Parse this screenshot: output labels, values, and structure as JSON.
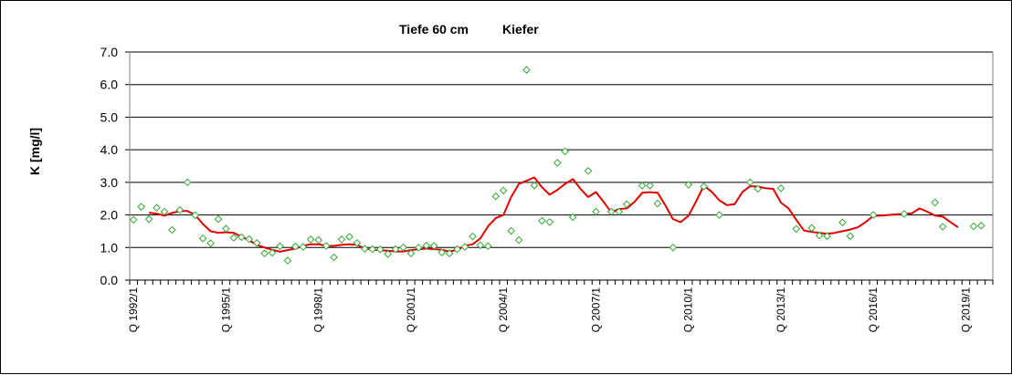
{
  "chart_data": {
    "type": "scatter",
    "title_parts": [
      "Tiefe  60 cm",
      "Kiefer"
    ],
    "ylabel": "K [mg/l]",
    "xlabel": "",
    "ylim": [
      0,
      7
    ],
    "yticks": [
      "0.0",
      "1.0",
      "2.0",
      "3.0",
      "4.0",
      "5.0",
      "6.0",
      "7.0"
    ],
    "x_tick_labels": [
      "Q 1992/1",
      "Q 1995/1",
      "Q 1998/1",
      "Q 2001/1",
      "Q 2004/1",
      "Q 2007/1",
      "Q 2010/1",
      "Q 2013/1",
      "Q 2016/1",
      "Q 2019/1"
    ],
    "x_range": [
      "Q 1992/1",
      "Q 2019/4"
    ],
    "grid": "horizontal",
    "legend": "none",
    "colors": {
      "points": "#33a833",
      "line": "#e00000",
      "grid": "#000000"
    },
    "series": [
      {
        "kind": "points",
        "marker": "diamond-open",
        "points": [
          [
            "1992-Q1",
            1.85
          ],
          [
            "1992-Q2",
            2.25
          ],
          [
            "1992-Q3",
            1.87
          ],
          [
            "1992-Q4",
            2.22
          ],
          [
            "1993-Q1",
            2.1
          ],
          [
            "1993-Q2",
            1.54
          ],
          [
            "1993-Q3",
            2.15
          ],
          [
            "1993-Q4",
            3.0
          ],
          [
            "1994-Q1",
            1.99
          ],
          [
            "1994-Q2",
            1.28
          ],
          [
            "1994-Q3",
            1.13
          ],
          [
            "1994-Q4",
            1.87
          ],
          [
            "1995-Q1",
            1.58
          ],
          [
            "1995-Q2",
            1.3
          ],
          [
            "1995-Q3",
            1.32
          ],
          [
            "1995-Q4",
            1.26
          ],
          [
            "1996-Q1",
            1.14
          ],
          [
            "1996-Q2",
            0.82
          ],
          [
            "1996-Q3",
            0.84
          ],
          [
            "1996-Q4",
            1.04
          ],
          [
            "1997-Q1",
            0.6
          ],
          [
            "1997-Q2",
            1.03
          ],
          [
            "1997-Q3",
            1.02
          ],
          [
            "1997-Q4",
            1.25
          ],
          [
            "1998-Q1",
            1.23
          ],
          [
            "1998-Q2",
            1.05
          ],
          [
            "1998-Q3",
            0.7
          ],
          [
            "1998-Q4",
            1.25
          ],
          [
            "1999-Q1",
            1.33
          ],
          [
            "1999-Q2",
            1.14
          ],
          [
            "1999-Q3",
            0.96
          ],
          [
            "1999-Q4",
            0.95
          ],
          [
            "2000-Q1",
            0.94
          ],
          [
            "2000-Q2",
            0.8
          ],
          [
            "2000-Q3",
            0.95
          ],
          [
            "2000-Q4",
            1.0
          ],
          [
            "2001-Q1",
            0.82
          ],
          [
            "2001-Q2",
            1.0
          ],
          [
            "2001-Q3",
            1.06
          ],
          [
            "2001-Q4",
            1.05
          ],
          [
            "2002-Q1",
            0.85
          ],
          [
            "2002-Q2",
            0.82
          ],
          [
            "2002-Q3",
            0.95
          ],
          [
            "2002-Q4",
            1.02
          ],
          [
            "2003-Q1",
            1.34
          ],
          [
            "2003-Q2",
            1.07
          ],
          [
            "2003-Q3",
            1.04
          ],
          [
            "2003-Q4",
            2.57
          ],
          [
            "2004-Q1",
            2.75
          ],
          [
            "2004-Q2",
            1.51
          ],
          [
            "2004-Q3",
            1.23
          ],
          [
            "2004-Q4",
            6.45
          ],
          [
            "2005-Q1",
            2.9
          ],
          [
            "2005-Q2",
            1.82
          ],
          [
            "2005-Q3",
            1.78
          ],
          [
            "2005-Q4",
            3.6
          ],
          [
            "2006-Q1",
            3.95
          ],
          [
            "2006-Q2",
            1.93
          ],
          [
            "2006-Q4",
            3.35
          ],
          [
            "2007-Q1",
            2.1
          ],
          [
            "2007-Q3",
            2.1
          ],
          [
            "2007-Q4",
            2.1
          ],
          [
            "2008-Q1",
            2.33
          ],
          [
            "2008-Q3",
            2.9
          ],
          [
            "2008-Q4",
            2.9
          ],
          [
            "2009-Q1",
            2.35
          ],
          [
            "2009-Q3",
            1.0
          ],
          [
            "2010-Q1",
            2.93
          ],
          [
            "2010-Q3",
            2.87
          ],
          [
            "2011-Q1",
            2.0
          ],
          [
            "2012-Q1",
            3.0
          ],
          [
            "2012-Q2",
            2.8
          ],
          [
            "2013-Q1",
            2.82
          ],
          [
            "2013-Q3",
            1.57
          ],
          [
            "2014-Q1",
            1.6
          ],
          [
            "2014-Q2",
            1.37
          ],
          [
            "2014-Q3",
            1.35
          ],
          [
            "2015-Q1",
            1.77
          ],
          [
            "2015-Q2",
            1.35
          ],
          [
            "2016-Q1",
            2.0
          ],
          [
            "2017-Q1",
            2.03
          ],
          [
            "2018-Q1",
            2.38
          ],
          [
            "2018-Q2",
            1.64
          ],
          [
            "2019-Q2",
            1.65
          ],
          [
            "2019-Q3",
            1.67
          ]
        ]
      },
      {
        "kind": "line",
        "points": [
          [
            "1992-Q3",
            2.07
          ],
          [
            "1992-Q4",
            2.04
          ],
          [
            "1993-Q1",
            1.98
          ],
          [
            "1993-Q2",
            2.06
          ],
          [
            "1993-Q3",
            2.12
          ],
          [
            "1993-Q4",
            2.12
          ],
          [
            "1994-Q1",
            2.0
          ],
          [
            "1994-Q2",
            1.72
          ],
          [
            "1994-Q3",
            1.5
          ],
          [
            "1994-Q4",
            1.45
          ],
          [
            "1995-Q1",
            1.47
          ],
          [
            "1995-Q2",
            1.45
          ],
          [
            "1995-Q3",
            1.33
          ],
          [
            "1995-Q4",
            1.22
          ],
          [
            "1996-Q1",
            1.08
          ],
          [
            "1996-Q2",
            1.0
          ],
          [
            "1996-Q3",
            0.93
          ],
          [
            "1996-Q4",
            0.87
          ],
          [
            "1997-Q1",
            0.92
          ],
          [
            "1997-Q2",
            0.97
          ],
          [
            "1997-Q3",
            1.05
          ],
          [
            "1997-Q4",
            1.1
          ],
          [
            "1998-Q1",
            1.1
          ],
          [
            "1998-Q2",
            1.05
          ],
          [
            "1998-Q3",
            1.05
          ],
          [
            "1998-Q4",
            1.08
          ],
          [
            "1999-Q1",
            1.1
          ],
          [
            "1999-Q2",
            1.08
          ],
          [
            "1999-Q3",
            0.97
          ],
          [
            "1999-Q4",
            0.93
          ],
          [
            "2000-Q1",
            0.92
          ],
          [
            "2000-Q2",
            0.9
          ],
          [
            "2000-Q3",
            0.88
          ],
          [
            "2000-Q4",
            0.88
          ],
          [
            "2001-Q1",
            0.92
          ],
          [
            "2001-Q2",
            0.95
          ],
          [
            "2001-Q3",
            0.97
          ],
          [
            "2001-Q4",
            0.95
          ],
          [
            "2002-Q1",
            0.93
          ],
          [
            "2002-Q2",
            0.88
          ],
          [
            "2002-Q3",
            0.93
          ],
          [
            "2002-Q4",
            1.05
          ],
          [
            "2003-Q1",
            1.1
          ],
          [
            "2003-Q2",
            1.28
          ],
          [
            "2003-Q3",
            1.65
          ],
          [
            "2003-Q4",
            1.9
          ],
          [
            "2004-Q1",
            2.0
          ],
          [
            "2004-Q2",
            2.55
          ],
          [
            "2004-Q3",
            2.95
          ],
          [
            "2004-Q4",
            3.05
          ],
          [
            "2005-Q1",
            3.15
          ],
          [
            "2005-Q2",
            2.85
          ],
          [
            "2005-Q3",
            2.62
          ],
          [
            "2005-Q4",
            2.77
          ],
          [
            "2006-Q1",
            2.95
          ],
          [
            "2006-Q2",
            3.1
          ],
          [
            "2006-Q3",
            2.8
          ],
          [
            "2006-Q4",
            2.55
          ],
          [
            "2007-Q1",
            2.7
          ],
          [
            "2007-Q2",
            2.4
          ],
          [
            "2007-Q3",
            2.08
          ],
          [
            "2007-Q4",
            2.18
          ],
          [
            "2008-Q1",
            2.2
          ],
          [
            "2008-Q2",
            2.4
          ],
          [
            "2008-Q3",
            2.68
          ],
          [
            "2008-Q4",
            2.7
          ],
          [
            "2009-Q1",
            2.68
          ],
          [
            "2009-Q2",
            2.3
          ],
          [
            "2009-Q3",
            1.87
          ],
          [
            "2009-Q4",
            1.78
          ],
          [
            "2010-Q1",
            1.97
          ],
          [
            "2010-Q2",
            2.42
          ],
          [
            "2010-Q3",
            2.9
          ],
          [
            "2010-Q4",
            2.72
          ],
          [
            "2011-Q1",
            2.45
          ],
          [
            "2011-Q2",
            2.3
          ],
          [
            "2011-Q3",
            2.33
          ],
          [
            "2011-Q4",
            2.7
          ],
          [
            "2012-Q1",
            2.88
          ],
          [
            "2012-Q2",
            2.87
          ],
          [
            "2012-Q3",
            2.82
          ],
          [
            "2012-Q4",
            2.8
          ],
          [
            "2013-Q1",
            2.38
          ],
          [
            "2013-Q2",
            2.2
          ],
          [
            "2013-Q3",
            1.85
          ],
          [
            "2013-Q4",
            1.52
          ],
          [
            "2014-Q1",
            1.48
          ],
          [
            "2014-Q2",
            1.45
          ],
          [
            "2014-Q3",
            1.42
          ],
          [
            "2014-Q4",
            1.45
          ],
          [
            "2015-Q1",
            1.5
          ],
          [
            "2015-Q2",
            1.55
          ],
          [
            "2015-Q3",
            1.62
          ],
          [
            "2015-Q4",
            1.78
          ],
          [
            "2016-Q1",
            1.97
          ],
          [
            "2016-Q2",
            1.98
          ],
          [
            "2016-Q3",
            2.0
          ],
          [
            "2016-Q4",
            2.02
          ],
          [
            "2017-Q1",
            2.03
          ],
          [
            "2017-Q2",
            2.05
          ],
          [
            "2017-Q3",
            2.2
          ],
          [
            "2017-Q4",
            2.1
          ],
          [
            "2018-Q1",
            1.98
          ],
          [
            "2018-Q2",
            1.95
          ],
          [
            "2018-Q3",
            1.78
          ],
          [
            "2018-Q4",
            1.62
          ]
        ]
      }
    ]
  }
}
